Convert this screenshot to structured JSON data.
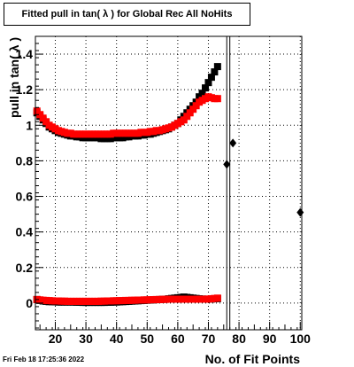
{
  "title": "Fitted pull in tan( λ ) for Global Rec All NoHits",
  "footer": "Fri Feb 18 17:25:36 2022",
  "chart_data": {
    "type": "scatter",
    "title": "Fitted pull in tan( λ ) for Global Rec All NoHits",
    "xlabel": "No. of Fit Points",
    "ylabel": "pull in tan( λ )",
    "xlim": [
      13.5,
      100.5
    ],
    "ylim": [
      -0.15,
      1.5
    ],
    "x_ticks": [
      20,
      30,
      40,
      50,
      60,
      70,
      80,
      90,
      100
    ],
    "y_ticks": [
      0,
      0.2,
      0.4,
      0.6,
      0.8,
      1,
      1.2,
      1.4
    ],
    "y_tick_labels": [
      "0",
      "0.2",
      "0.4",
      "0.6",
      "0.8",
      "1",
      "1.2",
      "1.4"
    ],
    "grid": true,
    "vertical_lines": [
      76,
      77
    ],
    "series": [
      {
        "color": "#000000",
        "marker": "square",
        "x": [
          14,
          15,
          16,
          17,
          18,
          19,
          20,
          21,
          22,
          23,
          24,
          25,
          26,
          27,
          28,
          29,
          30,
          31,
          32,
          33,
          34,
          35,
          36,
          37,
          38,
          39,
          40,
          41,
          42,
          43,
          44,
          45,
          46,
          47,
          48,
          49,
          50,
          51,
          52,
          53,
          54,
          55,
          56,
          57,
          58,
          59,
          60,
          61,
          62,
          63,
          64,
          65,
          66,
          67,
          68,
          69,
          70,
          71,
          72,
          73
        ],
        "y": [
          1.07,
          1.05,
          1.03,
          1.01,
          0.99,
          0.98,
          0.97,
          0.96,
          0.955,
          0.95,
          0.945,
          0.94,
          0.94,
          0.935,
          0.935,
          0.93,
          0.93,
          0.93,
          0.93,
          0.93,
          0.93,
          0.925,
          0.925,
          0.925,
          0.925,
          0.93,
          0.93,
          0.93,
          0.93,
          0.935,
          0.935,
          0.94,
          0.94,
          0.94,
          0.945,
          0.945,
          0.95,
          0.95,
          0.955,
          0.96,
          0.965,
          0.97,
          0.975,
          0.98,
          0.99,
          1.0,
          1.01,
          1.03,
          1.05,
          1.07,
          1.09,
          1.11,
          1.13,
          1.16,
          1.18,
          1.21,
          1.24,
          1.27,
          1.3,
          1.33
        ]
      },
      {
        "color": "#ff0000",
        "marker": "square",
        "x": [
          14,
          15,
          16,
          17,
          18,
          19,
          20,
          21,
          22,
          23,
          24,
          25,
          26,
          27,
          28,
          29,
          30,
          31,
          32,
          33,
          34,
          35,
          36,
          37,
          38,
          39,
          40,
          41,
          42,
          43,
          44,
          45,
          46,
          47,
          48,
          49,
          50,
          51,
          52,
          53,
          54,
          55,
          56,
          57,
          58,
          59,
          60,
          61,
          62,
          63,
          64,
          65,
          66,
          67,
          68,
          69,
          70,
          71,
          72,
          73
        ],
        "y": [
          1.08,
          1.06,
          1.04,
          1.02,
          1.0,
          0.99,
          0.98,
          0.97,
          0.965,
          0.96,
          0.955,
          0.955,
          0.95,
          0.95,
          0.95,
          0.95,
          0.95,
          0.95,
          0.95,
          0.95,
          0.95,
          0.95,
          0.95,
          0.95,
          0.95,
          0.955,
          0.955,
          0.955,
          0.955,
          0.955,
          0.955,
          0.955,
          0.955,
          0.955,
          0.96,
          0.96,
          0.96,
          0.965,
          0.965,
          0.97,
          0.97,
          0.975,
          0.98,
          0.985,
          0.99,
          1.0,
          1.01,
          1.02,
          1.03,
          1.05,
          1.07,
          1.09,
          1.11,
          1.13,
          1.14,
          1.15,
          1.16,
          1.155,
          1.15,
          1.15
        ]
      },
      {
        "color": "#000000",
        "marker": "square",
        "x": [
          14,
          15,
          16,
          17,
          18,
          19,
          20,
          21,
          22,
          23,
          24,
          25,
          26,
          27,
          28,
          29,
          30,
          31,
          32,
          33,
          34,
          35,
          36,
          37,
          38,
          39,
          40,
          41,
          42,
          43,
          44,
          45,
          46,
          47,
          48,
          49,
          50,
          51,
          52,
          53,
          54,
          55,
          56,
          57,
          58,
          59,
          60,
          61,
          62,
          63,
          64,
          65,
          66,
          67,
          68,
          69,
          70,
          71,
          72,
          73
        ],
        "y": [
          0.02,
          0.015,
          0.012,
          0.01,
          0.008,
          0.008,
          0.007,
          0.006,
          0.006,
          0.006,
          0.006,
          0.006,
          0.006,
          0.005,
          0.005,
          0.004,
          0.004,
          0.004,
          0.004,
          0.004,
          0.004,
          0.004,
          0.004,
          0.005,
          0.005,
          0.006,
          0.006,
          0.007,
          0.008,
          0.009,
          0.01,
          0.011,
          0.012,
          0.013,
          0.014,
          0.015,
          0.016,
          0.017,
          0.018,
          0.019,
          0.02,
          0.021,
          0.022,
          0.024,
          0.026,
          0.028,
          0.03,
          0.032,
          0.034,
          0.032,
          0.03,
          0.028,
          0.026,
          0.024,
          0.023,
          0.022,
          0.022,
          0.023,
          0.024,
          0.025
        ]
      },
      {
        "color": "#ff0000",
        "marker": "square",
        "x": [
          14,
          15,
          16,
          17,
          18,
          19,
          20,
          21,
          22,
          23,
          24,
          25,
          26,
          27,
          28,
          29,
          30,
          31,
          32,
          33,
          34,
          35,
          36,
          37,
          38,
          39,
          40,
          41,
          42,
          43,
          44,
          45,
          46,
          47,
          48,
          49,
          50,
          51,
          52,
          53,
          54,
          55,
          56,
          57,
          58,
          59,
          60,
          61,
          62,
          63,
          64,
          65,
          66,
          67,
          68,
          69,
          70,
          71,
          72,
          73
        ],
        "y": [
          0.02,
          0.018,
          0.016,
          0.015,
          0.014,
          0.013,
          0.012,
          0.012,
          0.011,
          0.011,
          0.01,
          0.01,
          0.01,
          0.01,
          0.01,
          0.01,
          0.01,
          0.01,
          0.01,
          0.01,
          0.01,
          0.011,
          0.011,
          0.012,
          0.012,
          0.013,
          0.013,
          0.014,
          0.014,
          0.015,
          0.015,
          0.016,
          0.016,
          0.017,
          0.017,
          0.018,
          0.018,
          0.019,
          0.019,
          0.02,
          0.02,
          0.021,
          0.021,
          0.022,
          0.022,
          0.022,
          0.022,
          0.022,
          0.022,
          0.022,
          0.022,
          0.022,
          0.022,
          0.022,
          0.022,
          0.022,
          0.023,
          0.024,
          0.026,
          0.028
        ]
      },
      {
        "color": "#000000",
        "marker": "diamond",
        "x": [
          76,
          78,
          100
        ],
        "y": [
          0.78,
          0.9,
          0.51
        ]
      }
    ]
  }
}
